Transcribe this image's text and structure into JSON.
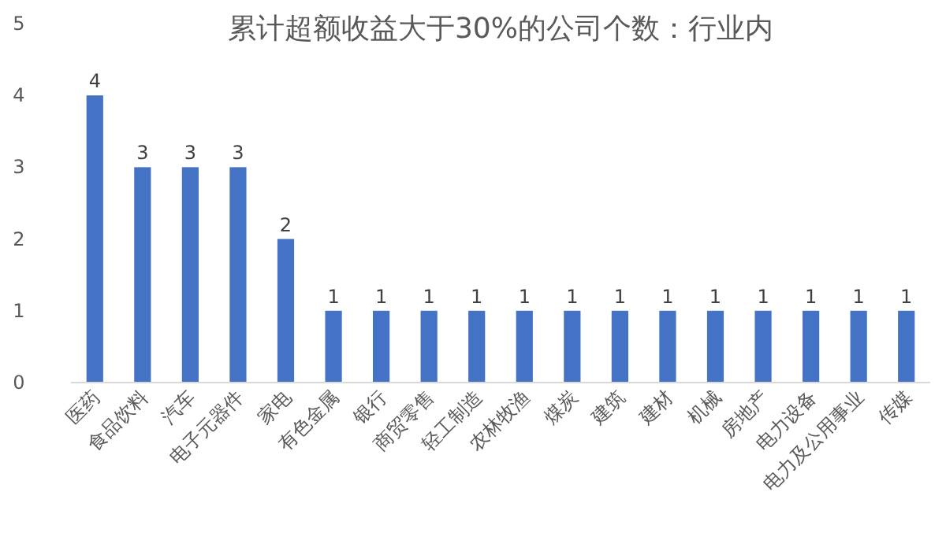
{
  "chart_data": {
    "type": "bar",
    "title": "累计超额收益大于30%的公司个数：行业内",
    "categories": [
      "医药",
      "食品饮料",
      "汽车",
      "电子元器件",
      "家电",
      "有色金属",
      "银行",
      "商贸零售",
      "轻工制造",
      "农林牧渔",
      "煤炭",
      "建筑",
      "建材",
      "机械",
      "房地产",
      "电力设备",
      "电力及公用事业",
      "传媒"
    ],
    "values": [
      4,
      3,
      3,
      3,
      2,
      1,
      1,
      1,
      1,
      1,
      1,
      1,
      1,
      1,
      1,
      1,
      1,
      1
    ],
    "color": "#4472c4",
    "ylim": [
      0,
      5
    ],
    "yticks": [
      0,
      1,
      2,
      3,
      4,
      5
    ],
    "grid": false,
    "data_labels": true
  }
}
